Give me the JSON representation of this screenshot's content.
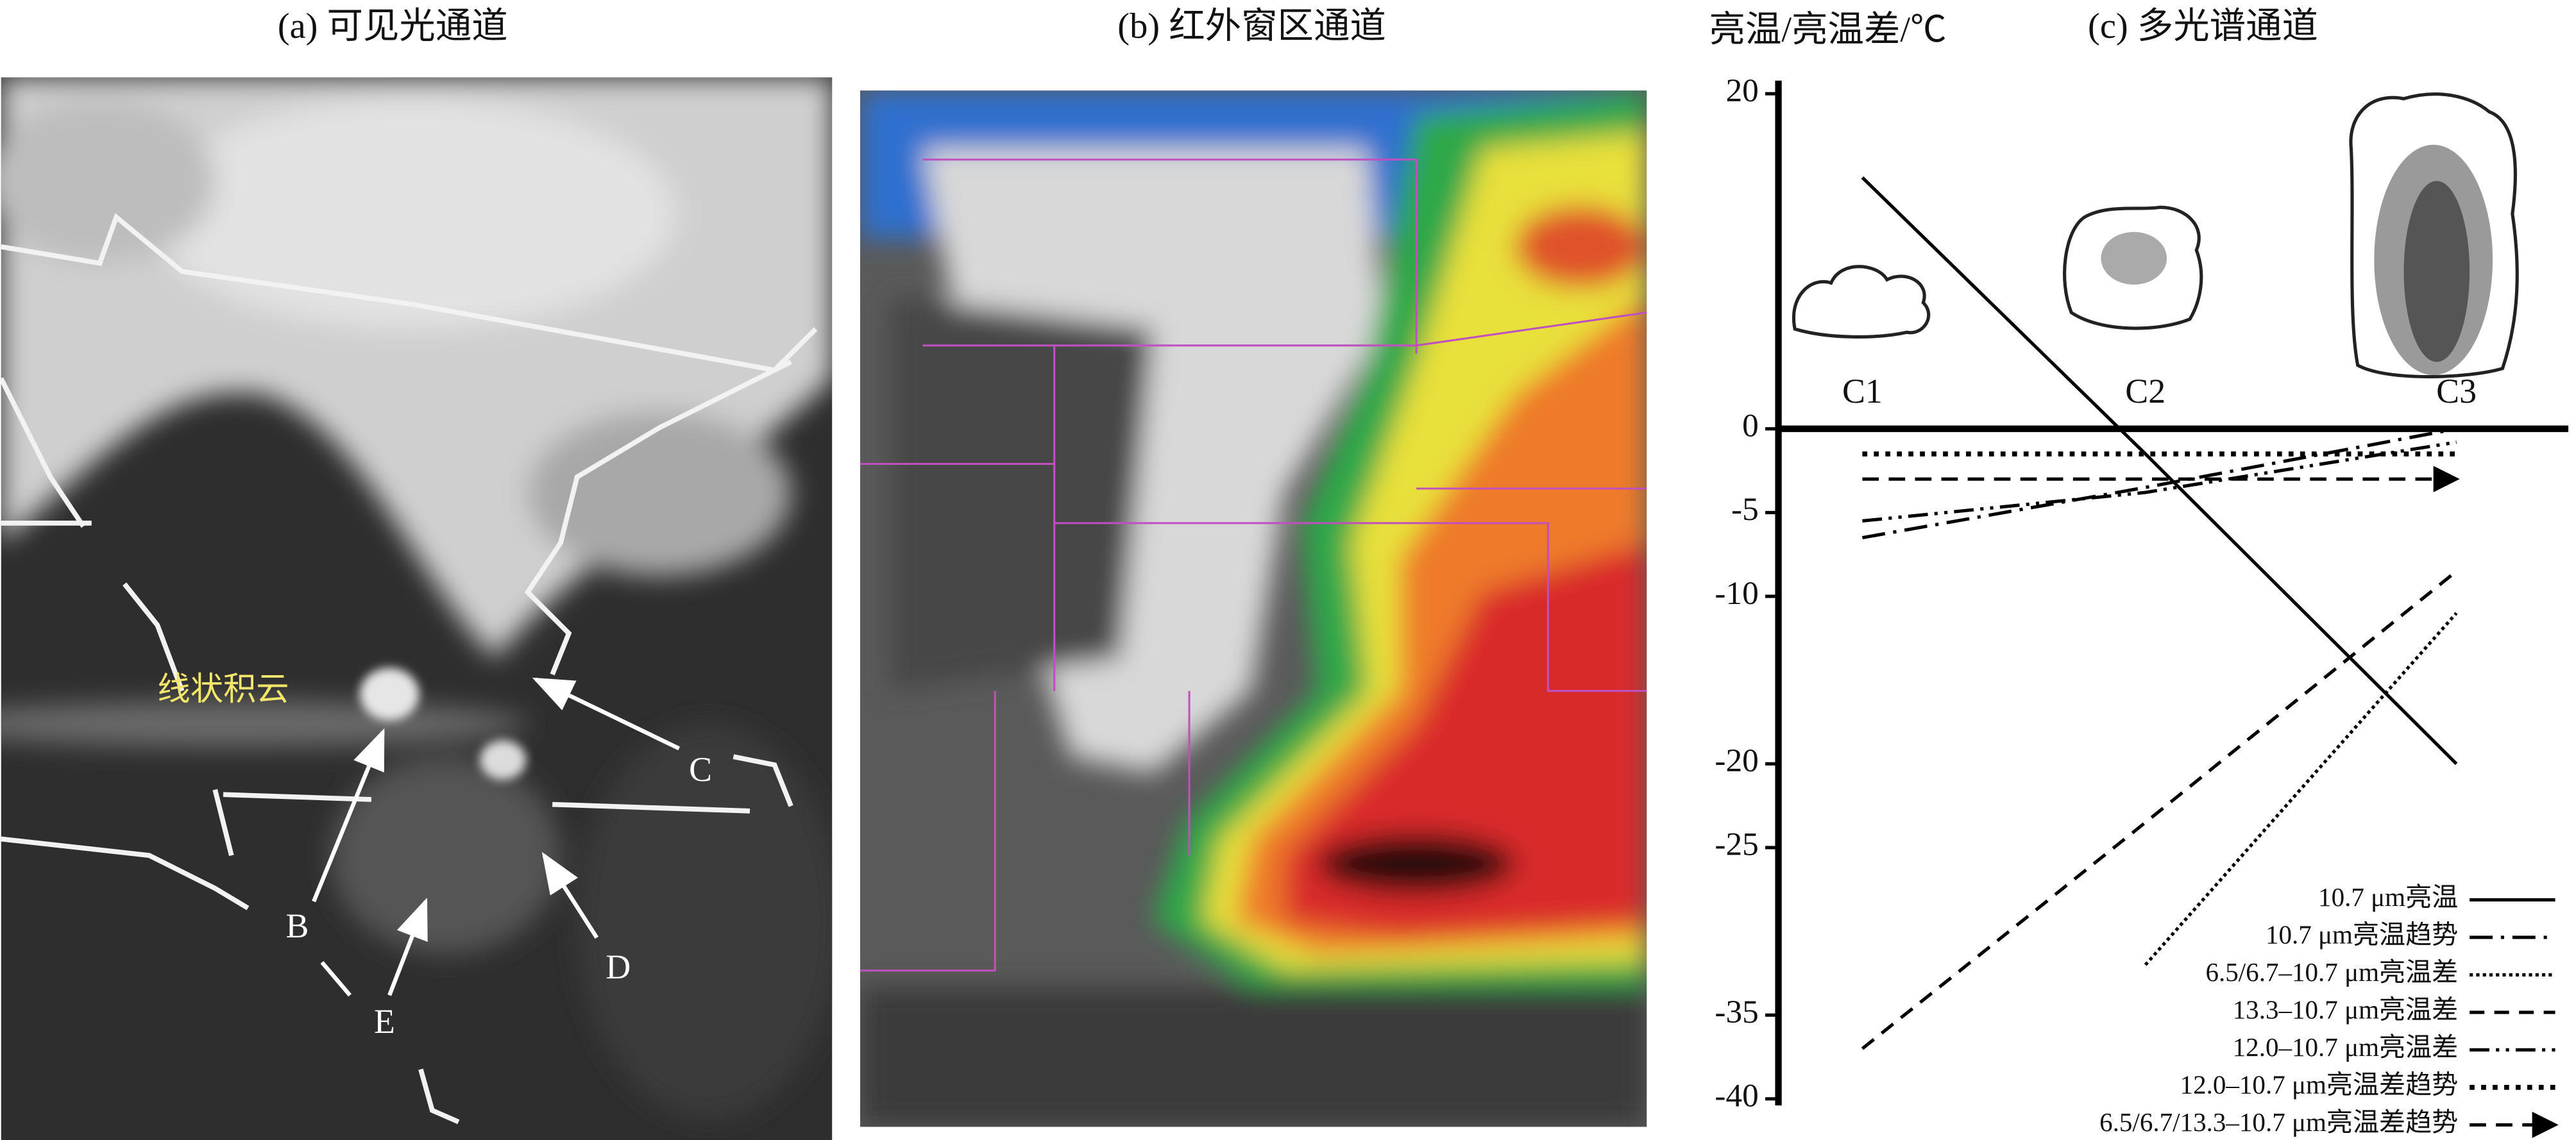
{
  "panels": {
    "a": {
      "title": "(a) 可见光通道",
      "labels": [
        "线状积云",
        "B",
        "C",
        "D",
        "E"
      ]
    },
    "b": {
      "title": "(b) 红外窗区通道"
    }
  },
  "chart_data": {
    "type": "line",
    "title": "(c) 多光谱通道",
    "y_label": "亮温/亮温差/℃",
    "categories": [
      "C1",
      "C2",
      "C3"
    ],
    "ylim": [
      -40,
      20
    ],
    "yticks": [
      20,
      0,
      -5,
      -10,
      -20,
      -25,
      -35,
      -40
    ],
    "series": [
      {
        "name": "10.7 μm亮温",
        "color": "#000000",
        "line_style": "solid",
        "values": [
          15,
          -1.5,
          -20
        ]
      },
      {
        "name": "10.7 μm亮温趋势",
        "color": "#000000",
        "line_style": "dashdot",
        "values": [
          -6.5,
          -3.5,
          0
        ]
      },
      {
        "name": "6.5/6.7–10.7 μm亮温差",
        "color": "#000000",
        "line_style": "dotted",
        "values": [
          null,
          -32,
          -11
        ]
      },
      {
        "name": "13.3–10.7 μm亮温差",
        "color": "#000000",
        "line_style": "dashed",
        "values": [
          -37,
          -23.5,
          -8.5
        ]
      },
      {
        "name": "12.0–10.7 μm亮温差",
        "color": "#000000",
        "line_style": "dashdotdot",
        "values": [
          -5.5,
          -3.8,
          -0.8
        ]
      },
      {
        "name": "12.0–10.7 μm亮温差趋势",
        "color": "#000000",
        "line_style": "dotted-thick",
        "values": [
          -1.5,
          -1.5,
          -1.5
        ]
      },
      {
        "name": "6.5/6.7/13.3–10.7 μm亮温差趋势",
        "color": "#000000",
        "line_style": "arrows",
        "values": [
          -3,
          -3,
          -3
        ]
      }
    ]
  }
}
